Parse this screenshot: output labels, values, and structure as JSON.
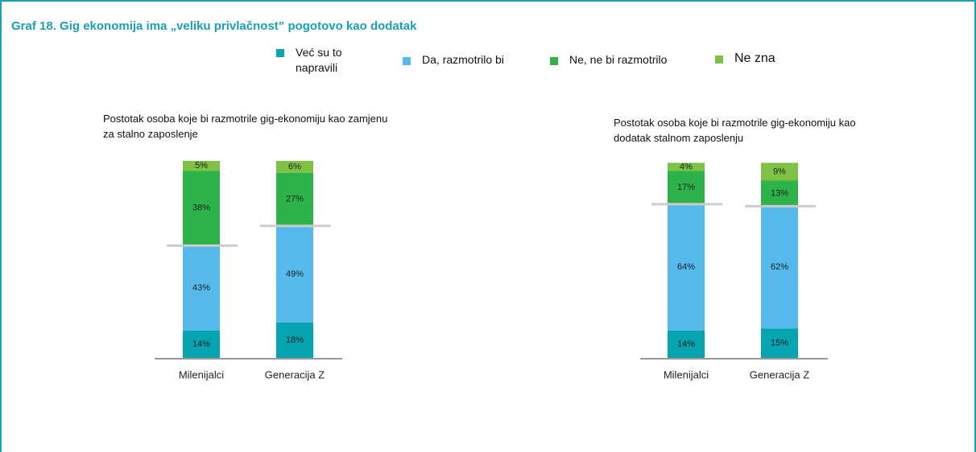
{
  "title": "Graf 18. Gig ekonomija ima „veliku privlačnost” pogotovo kao dodatak",
  "chart_data": [
    {
      "type": "bar",
      "stacked": true,
      "subtitle": "Postotak osoba koje bi razmotrile gig-ekonomiju kao zamjenu za stalno zaposlenje",
      "categories": [
        "Milenijalci",
        "Generacija Z"
      ],
      "series": [
        {
          "name": "Već su to napravili",
          "color": "#06a4b0",
          "values": [
            14,
            18
          ],
          "value_labels": [
            "14%",
            "18%"
          ]
        },
        {
          "name": "Da, razmotrilo bi",
          "color": "#56b9ec",
          "values": [
            43,
            49
          ],
          "value_labels": [
            "43%",
            "49%"
          ]
        },
        {
          "name": "Ne, ne bi razmotrilo",
          "color": "#2db34a",
          "values": [
            38,
            27
          ],
          "value_labels": [
            "38%",
            "27%"
          ]
        },
        {
          "name": "Ne zna",
          "color": "#7ec244",
          "values": [
            5,
            6
          ],
          "value_labels": [
            "5%",
            "6%"
          ]
        }
      ]
    },
    {
      "type": "bar",
      "stacked": true,
      "subtitle": "Postotak osoba koje bi razmotrile gig-ekonomiju kao dodatak stalnom zaposlenju",
      "categories": [
        "Milenijalci",
        "Generacija Z"
      ],
      "series": [
        {
          "name": "Već su to napravili",
          "color": "#06a4b0",
          "values": [
            14,
            15
          ],
          "value_labels": [
            "14%",
            "15%"
          ]
        },
        {
          "name": "Da, razmotrilo bi",
          "color": "#56b9ec",
          "values": [
            64,
            62
          ],
          "value_labels": [
            "64%",
            "62%"
          ]
        },
        {
          "name": "Ne, ne bi razmotrilo",
          "color": "#2db34a",
          "values": [
            17,
            13
          ],
          "value_labels": [
            "17%",
            "13%"
          ]
        },
        {
          "name": "Ne zna",
          "color": "#7ec244",
          "values": [
            4,
            9
          ],
          "value_labels": [
            "4%",
            "9%"
          ]
        }
      ]
    }
  ]
}
